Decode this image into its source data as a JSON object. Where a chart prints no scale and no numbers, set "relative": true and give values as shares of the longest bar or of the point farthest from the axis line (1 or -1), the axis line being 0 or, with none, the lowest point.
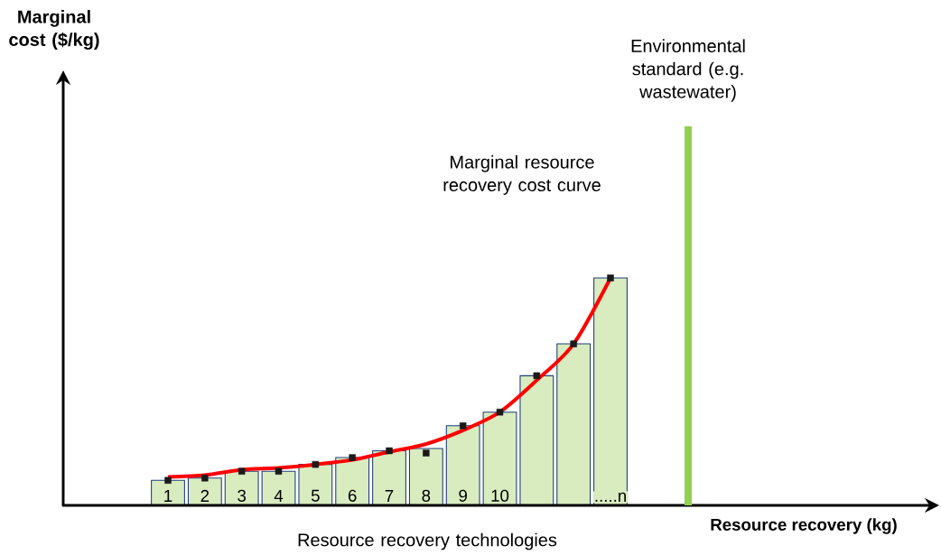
{
  "chart_data": {
    "type": "bar",
    "relative": true,
    "xlabel": "Resource recovery (kg)",
    "annotations": [
      "Resource recovery technologies",
      "Environmental standard (e.g. wastewater)",
      "Marginal cost ($/kg)"
    ],
    "categories": [
      "1",
      "2",
      "3",
      "4",
      "5",
      "6",
      "7",
      "8",
      "9",
      "10",
      null,
      null,
      ".....n"
    ],
    "series": [
      {
        "color": "#d9ecc0",
        "values": [
          0.11,
          0.12,
          0.15,
          0.15,
          0.18,
          0.21,
          0.24,
          0.25,
          0.35,
          0.41,
          0.57,
          0.71,
          1.0
        ]
      },
      {
        "type": "line",
        "name": "Marginal resource recovery cost curve",
        "color": "#ff0000",
        "values": [
          0.125,
          0.133,
          0.157,
          0.165,
          0.18,
          0.2,
          0.235,
          0.27,
          0.33,
          0.41,
          0.55,
          0.71,
          1.0
        ]
      },
      {
        "type": "scatter",
        "color": "#1a1a1a",
        "marker": "square",
        "values": [
          0.11,
          0.12,
          0.15,
          0.15,
          0.18,
          0.21,
          0.24,
          0.23,
          0.35,
          0.41,
          0.57,
          0.71,
          1.0
        ]
      }
    ]
  }
}
